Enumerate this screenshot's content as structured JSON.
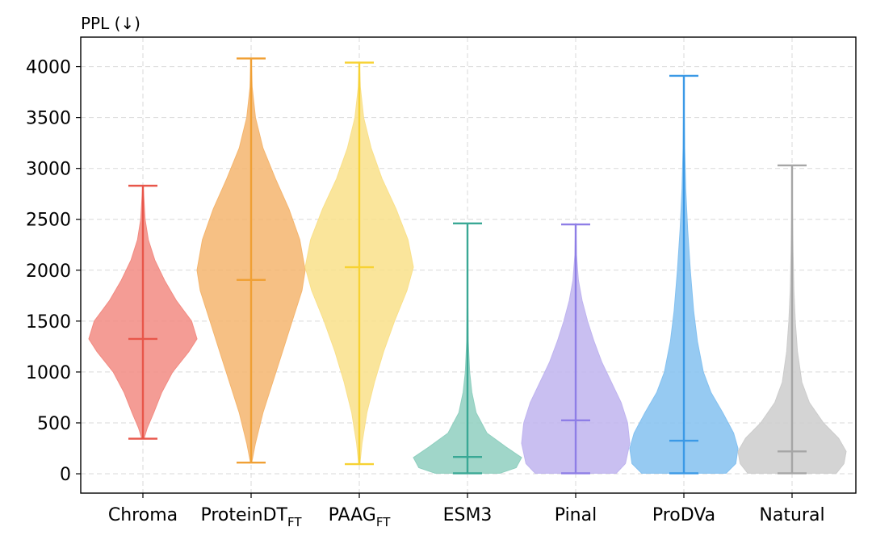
{
  "chart_data": {
    "type": "violin",
    "title": "",
    "xlabel": "",
    "ylabel": "PPL (↓)",
    "ylim": [
      -190,
      4290
    ],
    "yticks": [
      0,
      500,
      1000,
      1500,
      2000,
      2500,
      3000,
      3500,
      4000
    ],
    "ytick_labels": [
      "0",
      "500",
      "1000",
      "1500",
      "2000",
      "2500",
      "3000",
      "3500",
      "4000"
    ],
    "grid": true,
    "series": [
      {
        "name": "Chroma",
        "label": {
          "main": "Chroma",
          "sub": ""
        },
        "color": "#e8564a",
        "fill": "#f28b82",
        "min": 345,
        "max": 2830,
        "median": 1325,
        "density": [
          [
            345,
            0.02
          ],
          [
            450,
            0.08
          ],
          [
            600,
            0.2
          ],
          [
            800,
            0.35
          ],
          [
            1000,
            0.55
          ],
          [
            1200,
            0.85
          ],
          [
            1325,
            1.0
          ],
          [
            1500,
            0.9
          ],
          [
            1700,
            0.62
          ],
          [
            1900,
            0.4
          ],
          [
            2100,
            0.22
          ],
          [
            2300,
            0.1
          ],
          [
            2500,
            0.04
          ],
          [
            2830,
            0.005
          ]
        ]
      },
      {
        "name": "ProteinDT_FT",
        "label": {
          "main": "ProteinDT",
          "sub": "FT"
        },
        "color": "#f0a035",
        "fill": "#f4b56e",
        "min": 110,
        "max": 4080,
        "median": 1905,
        "density": [
          [
            110,
            0.01
          ],
          [
            300,
            0.08
          ],
          [
            600,
            0.22
          ],
          [
            900,
            0.4
          ],
          [
            1200,
            0.58
          ],
          [
            1500,
            0.76
          ],
          [
            1800,
            0.94
          ],
          [
            2000,
            1.0
          ],
          [
            2300,
            0.9
          ],
          [
            2600,
            0.7
          ],
          [
            2900,
            0.45
          ],
          [
            3200,
            0.22
          ],
          [
            3500,
            0.08
          ],
          [
            3800,
            0.02
          ],
          [
            4080,
            0.003
          ]
        ]
      },
      {
        "name": "PAAG_FT",
        "label": {
          "main": "PAAG",
          "sub": "FT"
        },
        "color": "#f7d233",
        "fill": "#f9e08a",
        "min": 95,
        "max": 4040,
        "median": 2030,
        "density": [
          [
            95,
            0.01
          ],
          [
            300,
            0.05
          ],
          [
            600,
            0.14
          ],
          [
            900,
            0.28
          ],
          [
            1200,
            0.45
          ],
          [
            1500,
            0.65
          ],
          [
            1800,
            0.88
          ],
          [
            2030,
            1.0
          ],
          [
            2300,
            0.9
          ],
          [
            2600,
            0.68
          ],
          [
            2900,
            0.42
          ],
          [
            3200,
            0.22
          ],
          [
            3500,
            0.08
          ],
          [
            3800,
            0.02
          ],
          [
            4040,
            0.003
          ]
        ]
      },
      {
        "name": "ESM3",
        "label": {
          "main": "ESM3",
          "sub": ""
        },
        "color": "#3aa895",
        "fill": "#8fcfbf",
        "min": 5,
        "max": 2460,
        "median": 165,
        "density": [
          [
            5,
            0.6
          ],
          [
            60,
            0.9
          ],
          [
            160,
            1.0
          ],
          [
            260,
            0.72
          ],
          [
            400,
            0.36
          ],
          [
            600,
            0.16
          ],
          [
            800,
            0.08
          ],
          [
            1000,
            0.04
          ],
          [
            1300,
            0.015
          ],
          [
            1700,
            0.006
          ],
          [
            2100,
            0.003
          ],
          [
            2460,
            0.001
          ]
        ]
      },
      {
        "name": "Pinal",
        "label": {
          "main": "Pinal",
          "sub": ""
        },
        "color": "#8e7ee6",
        "fill": "#bfb4ef",
        "min": 5,
        "max": 2450,
        "median": 525,
        "density": [
          [
            5,
            0.75
          ],
          [
            100,
            0.92
          ],
          [
            300,
            1.0
          ],
          [
            500,
            0.96
          ],
          [
            700,
            0.84
          ],
          [
            900,
            0.66
          ],
          [
            1100,
            0.48
          ],
          [
            1300,
            0.34
          ],
          [
            1500,
            0.22
          ],
          [
            1700,
            0.12
          ],
          [
            1900,
            0.05
          ],
          [
            2150,
            0.015
          ],
          [
            2450,
            0.003
          ]
        ]
      },
      {
        "name": "ProDVa",
        "label": {
          "main": "ProDVa",
          "sub": ""
        },
        "color": "#3b99e6",
        "fill": "#84c1f0",
        "min": 5,
        "max": 3910,
        "median": 325,
        "density": [
          [
            5,
            0.78
          ],
          [
            100,
            0.96
          ],
          [
            250,
            1.0
          ],
          [
            400,
            0.92
          ],
          [
            600,
            0.72
          ],
          [
            800,
            0.5
          ],
          [
            1000,
            0.36
          ],
          [
            1300,
            0.25
          ],
          [
            1600,
            0.18
          ],
          [
            2000,
            0.12
          ],
          [
            2400,
            0.07
          ],
          [
            2800,
            0.035
          ],
          [
            3200,
            0.015
          ],
          [
            3600,
            0.006
          ],
          [
            3910,
            0.002
          ]
        ]
      },
      {
        "name": "Natural",
        "label": {
          "main": "Natural",
          "sub": ""
        },
        "color": "#a6a6a6",
        "fill": "#cccccc",
        "min": 5,
        "max": 3030,
        "median": 220,
        "density": [
          [
            5,
            0.82
          ],
          [
            100,
            0.96
          ],
          [
            220,
            1.0
          ],
          [
            350,
            0.86
          ],
          [
            500,
            0.58
          ],
          [
            700,
            0.32
          ],
          [
            900,
            0.18
          ],
          [
            1200,
            0.1
          ],
          [
            1500,
            0.06
          ],
          [
            1800,
            0.035
          ],
          [
            2200,
            0.018
          ],
          [
            2600,
            0.008
          ],
          [
            3030,
            0.002
          ]
        ]
      }
    ]
  }
}
